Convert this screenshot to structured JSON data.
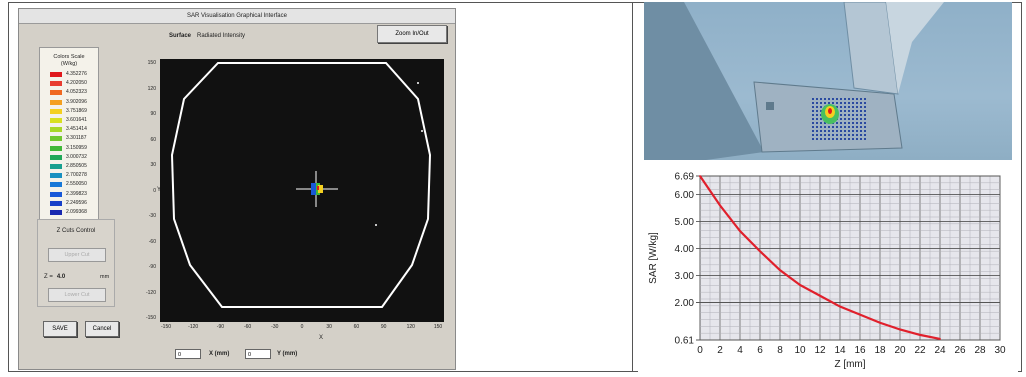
{
  "dialog": {
    "title": "SAR Visualisation Graphical Interface",
    "surface_label": "Surface",
    "surface_value": "Radiated Intensity",
    "zoom_button": "Zoom In/Out"
  },
  "color_scale": {
    "title_line1": "Colors Scale",
    "title_line2": "(W/kg)",
    "entries": [
      {
        "value": "4.352276",
        "color": "#e0181c"
      },
      {
        "value": "4.202050",
        "color": "#e83c30"
      },
      {
        "value": "4.052323",
        "color": "#f06820"
      },
      {
        "value": "3.902096",
        "color": "#f4a020"
      },
      {
        "value": "3.751869",
        "color": "#f4d020"
      },
      {
        "value": "3.601641",
        "color": "#d8e020"
      },
      {
        "value": "3.451414",
        "color": "#a8d828"
      },
      {
        "value": "3.301187",
        "color": "#70c830"
      },
      {
        "value": "3.150959",
        "color": "#40b838"
      },
      {
        "value": "3.000732",
        "color": "#20a858"
      },
      {
        "value": "2.850505",
        "color": "#18a090"
      },
      {
        "value": "2.700278",
        "color": "#1890c0"
      },
      {
        "value": "2.550050",
        "color": "#1878d8"
      },
      {
        "value": "2.399823",
        "color": "#1858d8"
      },
      {
        "value": "2.249596",
        "color": "#1840c8"
      },
      {
        "value": "2.099368",
        "color": "#1828b0"
      }
    ]
  },
  "zcuts": {
    "title": "Z Cuts Control",
    "upper_button": "Upper Cut",
    "z_label": "Z =",
    "z_value": "4.0",
    "z_unit": "mm",
    "lower_button": "Lower Cut"
  },
  "buttons": {
    "save": "SAVE",
    "cancel": "Cancel"
  },
  "plot": {
    "ylabel": "Y",
    "xlabel": "X",
    "y_ticks": [
      "150",
      "120",
      "90",
      "60",
      "30",
      "0",
      "-30",
      "-60",
      "-90",
      "-120",
      "-150"
    ],
    "x_ticks": [
      "-150",
      "-120",
      "-90",
      "-60",
      "-30",
      "0",
      "30",
      "60",
      "90",
      "120",
      "150"
    ]
  },
  "coords": {
    "x_value": "0",
    "x_label": "X (mm)",
    "y_value": "0",
    "y_label": "Y (mm)"
  },
  "chart_data": {
    "type": "line",
    "xlabel": "Z [mm]",
    "ylabel": "SAR [W/kg]",
    "x_ticks": [
      "0",
      "2",
      "4",
      "6",
      "8",
      "10",
      "12",
      "14",
      "16",
      "18",
      "20",
      "22",
      "24",
      "26",
      "28",
      "30"
    ],
    "y_ticks": [
      "6.69",
      "6.00",
      "5.00",
      "4.00",
      "3.00",
      "2.00",
      "0.61"
    ],
    "xlim": [
      0,
      30
    ],
    "ylim": [
      0.61,
      6.69
    ],
    "series": [
      {
        "color": "#e0202c",
        "x": [
          0,
          2,
          4,
          6,
          8,
          10,
          12,
          14,
          16,
          18,
          20,
          22,
          24
        ],
        "y": [
          6.69,
          5.6,
          4.65,
          3.9,
          3.2,
          2.65,
          2.25,
          1.85,
          1.55,
          1.25,
          1.0,
          0.8,
          0.65
        ]
      }
    ]
  }
}
